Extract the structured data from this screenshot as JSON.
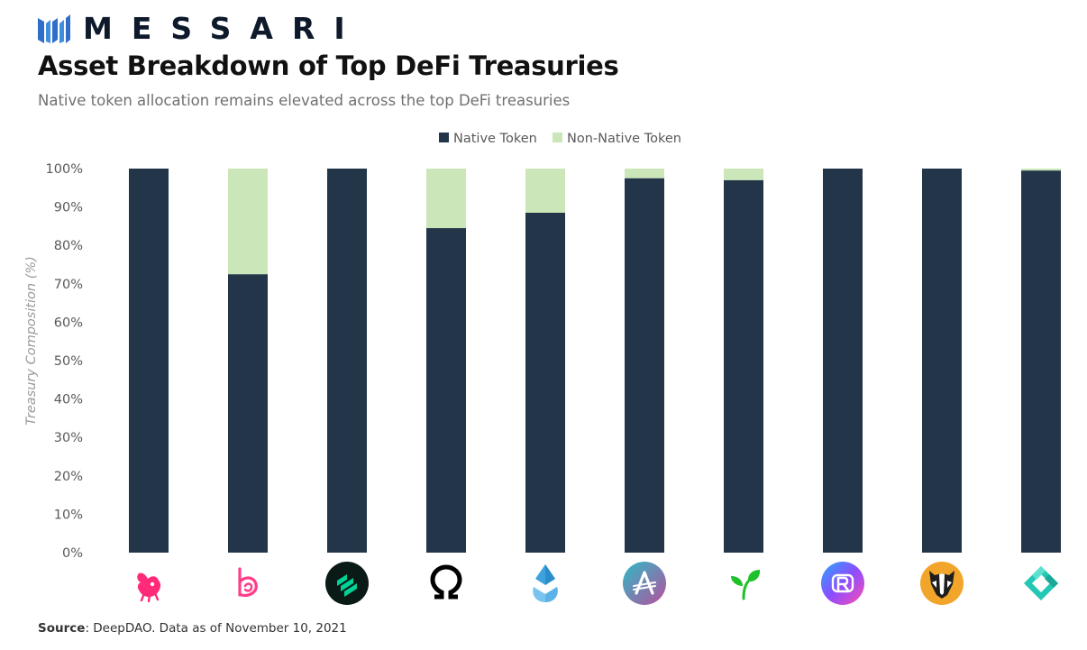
{
  "brand": {
    "name": "MESSARI",
    "logo_icon": "messari-logo-icon"
  },
  "title": "Asset Breakdown of Top DeFi Treasuries",
  "subtitle": "Native token allocation remains elevated across the top DeFi treasuries",
  "source": {
    "label": "Source",
    "text": ": DeepDAO. Data as of November 10, 2021"
  },
  "chart_data": {
    "type": "bar",
    "stacked": true,
    "title": "Asset Breakdown of Top DeFi Treasuries",
    "subtitle": "Native token allocation remains elevated across the top DeFi treasuries",
    "xlabel": "",
    "ylabel": "Treasury Composition (%)",
    "ylim": [
      0,
      100
    ],
    "yticks": [
      "0%",
      "10%",
      "20%",
      "30%",
      "40%",
      "50%",
      "60%",
      "70%",
      "80%",
      "90%",
      "100%"
    ],
    "grid": false,
    "legend_position": "top-center",
    "categories": [
      "uniswap-icon",
      "bancor-icon",
      "compound-icon",
      "ohm-icon",
      "lido-icon",
      "aave-icon",
      "sushiswap-sprout-icon",
      "rari-icon",
      "badger-icon",
      "gnosis-icon"
    ],
    "series": [
      {
        "name": "Native Token",
        "color": "#233549",
        "values": [
          100,
          72.5,
          100,
          84.5,
          88.5,
          97.5,
          97,
          100,
          100,
          99.5
        ]
      },
      {
        "name": "Non-Native Token",
        "color": "#cbe6b8",
        "values": [
          0,
          27.5,
          0,
          15.5,
          11.5,
          2.5,
          3,
          0,
          0,
          0.5
        ]
      }
    ]
  }
}
